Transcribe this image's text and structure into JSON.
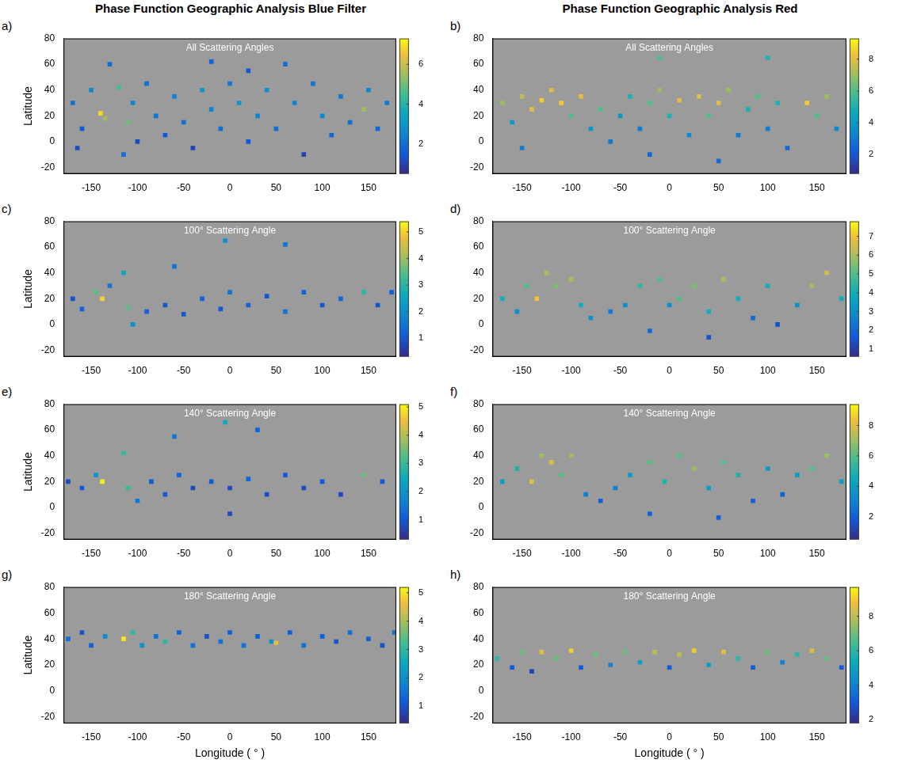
{
  "chart_data": [
    {
      "type": "scatter",
      "panel_label": "a)",
      "title": "Phase Function Geographic Analysis Blue Filter",
      "subtitle": "All Scattering Angles",
      "y_label": "Latitude",
      "marker": "square",
      "grid": false,
      "xlim": [
        -180,
        180
      ],
      "xticks": [
        -150,
        -100,
        -50,
        0,
        50,
        100,
        150
      ],
      "ylim": [
        -25,
        80
      ],
      "yticks": [
        -20,
        0,
        20,
        40,
        60,
        80
      ],
      "x": [
        -170,
        -160,
        -150,
        -140,
        -135,
        -120,
        -110,
        -105,
        -100,
        -90,
        -80,
        -70,
        -60,
        -50,
        -40,
        -30,
        -20,
        -10,
        0,
        10,
        20,
        30,
        40,
        50,
        60,
        70,
        80,
        90,
        100,
        110,
        120,
        130,
        145,
        150,
        160,
        170,
        -130,
        -20,
        20,
        -165,
        -115
      ],
      "y": [
        30,
        10,
        40,
        22,
        18,
        42,
        15,
        30,
        0,
        45,
        20,
        5,
        35,
        15,
        -5,
        40,
        25,
        10,
        45,
        30,
        0,
        20,
        40,
        10,
        60,
        30,
        -10,
        45,
        20,
        5,
        35,
        15,
        25,
        40,
        10,
        30,
        60,
        62,
        55,
        -5,
        -10
      ],
      "values": [
        2,
        1.5,
        2.5,
        6.8,
        5.5,
        4.5,
        5,
        2.5,
        1.2,
        2,
        2.2,
        1.5,
        2.5,
        2,
        1,
        3,
        2.5,
        2,
        2.2,
        3,
        1.5,
        2.5,
        2.8,
        2,
        2,
        2.5,
        1,
        2.2,
        2.5,
        1.8,
        2.3,
        2,
        5.5,
        2.5,
        1.8,
        2.2,
        2,
        1.8,
        1.5,
        1.2,
        2
      ],
      "colorbar": {
        "range": [
          0.5,
          7.3
        ],
        "ticks": [
          2,
          4,
          6
        ]
      }
    },
    {
      "type": "scatter",
      "panel_label": "b)",
      "title": "Phase Function Geographic Analysis Red",
      "subtitle": "All Scattering Angles",
      "marker": "square",
      "grid": false,
      "xlim": [
        -180,
        180
      ],
      "xticks": [
        -150,
        -100,
        -50,
        0,
        50,
        100,
        150
      ],
      "ylim": [
        -25,
        80
      ],
      "yticks": [
        -20,
        0,
        20,
        40,
        60,
        80
      ],
      "x": [
        -170,
        -160,
        -150,
        -140,
        -130,
        -120,
        -110,
        -100,
        -90,
        -80,
        -70,
        -60,
        -50,
        -40,
        -30,
        -20,
        -10,
        0,
        10,
        20,
        30,
        40,
        50,
        60,
        70,
        80,
        90,
        100,
        110,
        120,
        140,
        150,
        160,
        170,
        -150,
        -20,
        100,
        -10,
        50
      ],
      "y": [
        30,
        15,
        35,
        25,
        32,
        40,
        30,
        20,
        35,
        10,
        25,
        0,
        20,
        35,
        10,
        30,
        40,
        20,
        32,
        5,
        35,
        20,
        30,
        40,
        5,
        25,
        35,
        10,
        30,
        -5,
        30,
        20,
        35,
        10,
        -5,
        -10,
        65,
        65,
        -15
      ],
      "values": [
        7,
        4,
        7.5,
        8,
        8.5,
        8,
        8.5,
        6,
        8,
        4,
        6,
        3,
        4,
        5,
        3,
        6,
        7,
        5,
        8,
        3.5,
        8,
        6,
        8,
        7,
        3,
        5,
        6,
        3,
        5,
        2.5,
        8.5,
        6,
        7,
        3.5,
        3,
        2.5,
        5,
        6,
        2.5
      ],
      "colorbar": {
        "range": [
          0.8,
          9.3
        ],
        "ticks": [
          2,
          4,
          6,
          8
        ]
      }
    },
    {
      "type": "scatter",
      "panel_label": "c)",
      "subtitle": "100° Scattering Angle",
      "y_label": "Latitude",
      "marker": "square",
      "grid": false,
      "xlim": [
        -180,
        180
      ],
      "xticks": [
        -150,
        -100,
        -50,
        0,
        50,
        100,
        150
      ],
      "ylim": [
        -25,
        80
      ],
      "yticks": [
        -20,
        0,
        20,
        40,
        60,
        80
      ],
      "x": [
        -170,
        -160,
        -145,
        -138,
        -130,
        -115,
        -110,
        -105,
        -90,
        -70,
        -60,
        -50,
        -30,
        -10,
        0,
        20,
        40,
        60,
        80,
        100,
        120,
        145,
        160,
        175,
        60,
        -5
      ],
      "y": [
        20,
        12,
        25,
        20,
        30,
        40,
        13,
        0,
        10,
        15,
        45,
        8,
        20,
        12,
        25,
        15,
        22,
        10,
        25,
        15,
        20,
        25,
        15,
        25,
        62,
        65
      ],
      "values": [
        1,
        1.2,
        3.5,
        5,
        1.5,
        2.5,
        3.5,
        2,
        1.2,
        1,
        1.5,
        1,
        1.2,
        1,
        1.5,
        1.2,
        1,
        1.5,
        1.2,
        1,
        1.3,
        3,
        1,
        1.2,
        1.5,
        2
      ],
      "colorbar": {
        "range": [
          0.3,
          5.4
        ],
        "ticks": [
          1,
          2,
          3,
          4,
          5
        ]
      }
    },
    {
      "type": "scatter",
      "panel_label": "d)",
      "subtitle": "100° Scattering Angle",
      "marker": "square",
      "grid": false,
      "xlim": [
        -180,
        180
      ],
      "xticks": [
        -150,
        -100,
        -50,
        0,
        50,
        100,
        150
      ],
      "ylim": [
        -25,
        80
      ],
      "yticks": [
        -20,
        0,
        20,
        40,
        60,
        80
      ],
      "x": [
        -170,
        -155,
        -145,
        -135,
        -125,
        -115,
        -100,
        -90,
        -80,
        -60,
        -45,
        -30,
        -10,
        0,
        10,
        25,
        40,
        55,
        70,
        85,
        100,
        110,
        130,
        145,
        160,
        175,
        -20,
        40
      ],
      "y": [
        20,
        10,
        30,
        20,
        40,
        30,
        35,
        15,
        5,
        10,
        15,
        30,
        35,
        15,
        20,
        30,
        10,
        35,
        20,
        5,
        30,
        0,
        15,
        30,
        40,
        20,
        -5,
        -10
      ],
      "values": [
        4,
        3,
        5,
        7,
        6,
        5.5,
        6,
        4,
        3,
        2.5,
        3,
        4.5,
        5,
        3,
        5,
        5.5,
        4,
        6,
        4,
        2,
        4,
        1.5,
        3,
        6,
        6.5,
        4,
        2,
        1.5
      ],
      "colorbar": {
        "range": [
          0.6,
          7.8
        ],
        "ticks": [
          1,
          2,
          3,
          4,
          5,
          6,
          7
        ]
      }
    },
    {
      "type": "scatter",
      "panel_label": "e)",
      "subtitle": "140° Scattering Angle",
      "y_label": "Latitude",
      "marker": "square",
      "grid": false,
      "xlim": [
        -180,
        180
      ],
      "xticks": [
        -150,
        -100,
        -50,
        0,
        50,
        100,
        150
      ],
      "ylim": [
        -25,
        80
      ],
      "yticks": [
        -20,
        0,
        20,
        40,
        60,
        80
      ],
      "x": [
        -175,
        -160,
        -145,
        -138,
        -115,
        -110,
        -100,
        -85,
        -70,
        -55,
        -40,
        -20,
        0,
        20,
        40,
        60,
        80,
        100,
        120,
        145,
        165,
        -60,
        30,
        -5,
        0
      ],
      "y": [
        20,
        15,
        25,
        20,
        42,
        15,
        5,
        20,
        10,
        25,
        15,
        20,
        15,
        22,
        10,
        25,
        15,
        20,
        10,
        25,
        20,
        55,
        60,
        66,
        -5
      ],
      "values": [
        0.8,
        1,
        2,
        5,
        3,
        3,
        1.5,
        1,
        1,
        1.2,
        0.8,
        1,
        0.8,
        1.2,
        0.8,
        1,
        0.8,
        1,
        0.8,
        3.5,
        1,
        1.5,
        1.2,
        2.5,
        0.8
      ],
      "colorbar": {
        "range": [
          0.3,
          5.1
        ],
        "ticks": [
          1,
          2,
          3,
          4,
          5
        ]
      }
    },
    {
      "type": "scatter",
      "panel_label": "f)",
      "subtitle": "140° Scattering Angle",
      "marker": "square",
      "grid": false,
      "xlim": [
        -180,
        180
      ],
      "xticks": [
        -150,
        -100,
        -50,
        0,
        50,
        100,
        150
      ],
      "ylim": [
        -25,
        80
      ],
      "yticks": [
        -20,
        0,
        20,
        40,
        60,
        80
      ],
      "x": [
        -170,
        -155,
        -140,
        -130,
        -120,
        -110,
        -100,
        -85,
        -70,
        -55,
        -40,
        -20,
        -5,
        10,
        25,
        40,
        55,
        70,
        85,
        100,
        115,
        130,
        145,
        160,
        175,
        -20,
        50
      ],
      "y": [
        20,
        30,
        20,
        40,
        35,
        25,
        40,
        10,
        5,
        15,
        25,
        35,
        20,
        40,
        30,
        15,
        35,
        25,
        5,
        30,
        10,
        25,
        30,
        40,
        20,
        -5,
        -8
      ],
      "values": [
        4,
        5,
        8,
        7,
        8,
        6,
        7,
        3,
        2,
        3,
        4,
        6,
        5,
        6,
        7,
        4,
        6,
        5,
        2,
        4,
        2,
        4,
        6,
        7,
        4,
        2,
        2
      ],
      "colorbar": {
        "range": [
          0.5,
          9.4
        ],
        "ticks": [
          2,
          4,
          6,
          8
        ]
      }
    },
    {
      "type": "scatter",
      "panel_label": "g)",
      "subtitle": "180° Scattering Angle",
      "x_label": "Longitude ( ° )",
      "y_label": "Latitude",
      "marker": "square",
      "grid": false,
      "xlim": [
        -180,
        180
      ],
      "xticks": [
        -150,
        -100,
        -50,
        0,
        50,
        100,
        150
      ],
      "ylim": [
        -25,
        80
      ],
      "yticks": [
        -20,
        0,
        20,
        40,
        60,
        80
      ],
      "x": [
        -175,
        -160,
        -150,
        -135,
        -115,
        -105,
        -95,
        -80,
        -70,
        -55,
        -40,
        -25,
        -10,
        0,
        15,
        30,
        45,
        50,
        65,
        80,
        100,
        115,
        130,
        150,
        165,
        178
      ],
      "y": [
        40,
        45,
        35,
        42,
        40,
        45,
        35,
        42,
        38,
        45,
        35,
        42,
        38,
        45,
        35,
        42,
        38,
        37,
        45,
        35,
        42,
        38,
        45,
        40,
        35,
        45
      ],
      "values": [
        1.5,
        1,
        1.2,
        2,
        5,
        3,
        2,
        1.5,
        3,
        1.2,
        1.5,
        1,
        1.5,
        1.2,
        1.5,
        1.2,
        2,
        4.5,
        1.2,
        1.5,
        1.2,
        1,
        1.5,
        1.2,
        1,
        1.5
      ],
      "colorbar": {
        "range": [
          0.4,
          5.2
        ],
        "ticks": [
          1,
          2,
          3,
          4,
          5
        ]
      }
    },
    {
      "type": "scatter",
      "panel_label": "h)",
      "subtitle": "180° Scattering Angle",
      "x_label": "Longitude ( ° )",
      "marker": "square",
      "grid": false,
      "xlim": [
        -180,
        180
      ],
      "xticks": [
        -150,
        -100,
        -50,
        0,
        50,
        100,
        150
      ],
      "ylim": [
        -25,
        80
      ],
      "yticks": [
        -20,
        0,
        20,
        40,
        60,
        80
      ],
      "x": [
        -175,
        -160,
        -150,
        -130,
        -115,
        -100,
        -90,
        -75,
        -60,
        -45,
        -30,
        -15,
        0,
        10,
        25,
        40,
        55,
        70,
        85,
        100,
        115,
        130,
        145,
        160,
        175,
        -140
      ],
      "y": [
        25,
        18,
        30,
        30,
        25,
        31,
        18,
        28,
        20,
        30,
        22,
        30,
        18,
        28,
        31,
        20,
        30,
        25,
        18,
        30,
        22,
        28,
        31,
        25,
        18,
        15
      ],
      "values": [
        6,
        3,
        7,
        8.5,
        7,
        9,
        3,
        7,
        4,
        7,
        5,
        8,
        3,
        8,
        9,
        5,
        8.5,
        6,
        3,
        7,
        4,
        6,
        8.5,
        7,
        3,
        2.5
      ],
      "colorbar": {
        "range": [
          1.8,
          9.7
        ],
        "ticks": [
          2,
          4,
          6,
          8
        ]
      }
    }
  ]
}
